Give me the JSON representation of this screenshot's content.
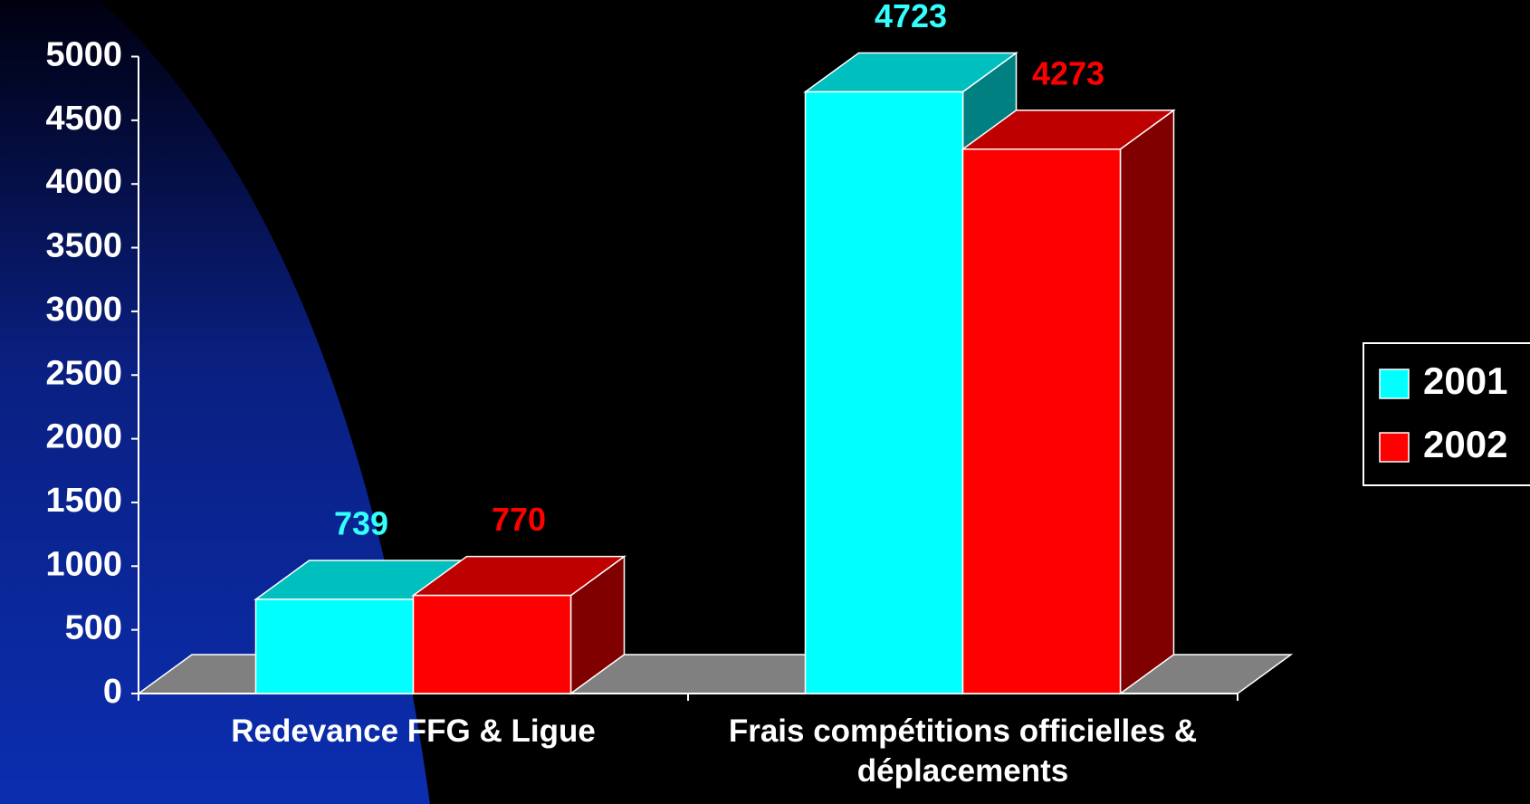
{
  "chart_data": {
    "type": "bar3d",
    "categories": [
      "Redevance FFG & Ligue",
      "Frais compétitions officielles & déplacements"
    ],
    "series": [
      {
        "name": "2001",
        "color": "#00ffff",
        "label_color": "#33ffff",
        "values": [
          739,
          4723
        ]
      },
      {
        "name": "2002",
        "color": "#ff0000",
        "label_color": "#ff0000",
        "values": [
          770,
          4273
        ]
      }
    ],
    "ylim": [
      0,
      5000
    ],
    "yticks": [
      0,
      500,
      1000,
      1500,
      2000,
      2500,
      3000,
      3500,
      4000,
      4500,
      5000
    ],
    "legend": "right"
  }
}
